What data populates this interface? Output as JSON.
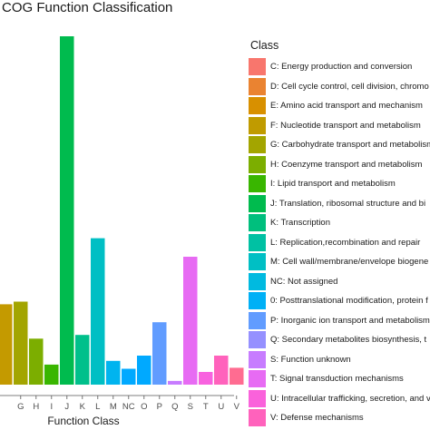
{
  "chart_data": {
    "type": "bar",
    "title": "COG Function Classification",
    "xlabel": "Function Class",
    "ylabel": "",
    "legend_title": "Class",
    "legend_position": "right",
    "grid": false,
    "categories": [
      "F",
      "G",
      "H",
      "I",
      "J",
      "K",
      "L",
      "M",
      "NC",
      "O",
      "P",
      "Q",
      "S",
      "T",
      "U",
      "V"
    ],
    "tick_labels": [
      "G",
      "H",
      "I",
      "J",
      "K",
      "L",
      "M",
      "NC",
      "O",
      "P",
      "Q",
      "S",
      "T",
      "U",
      "V"
    ],
    "values": [
      152,
      157,
      87,
      38,
      659,
      94,
      277,
      45,
      30,
      55,
      118,
      7,
      242,
      24,
      55,
      32
    ],
    "colors": [
      "#C49A00",
      "#A3A500",
      "#7CAE00",
      "#39B600",
      "#00BB4E",
      "#00C08B",
      "#00BFC4",
      "#00B4EF",
      "#00A9FF",
      "#00A9FF",
      "#619CFF",
      "#C77CFF",
      "#E76BF3",
      "#F862DF",
      "#FF62BC",
      "#FF6C91"
    ],
    "legend": [
      {
        "label": "C: Energy production and conversion",
        "color": "#F8766D"
      },
      {
        "label": "D: Cell cycle control, cell division, chromo",
        "color": "#EA8331"
      },
      {
        "label": "E: Amino acid transport and mechanism",
        "color": "#D89000"
      },
      {
        "label": "F: Nucleotide transport and metabolism",
        "color": "#C09B00"
      },
      {
        "label": "G: Carbohydrate transport and metabolism",
        "color": "#A3A500"
      },
      {
        "label": "H: Coenzyme transport and metabolism",
        "color": "#7CAE00"
      },
      {
        "label": "I: Lipid transport and metabolism",
        "color": "#39B600"
      },
      {
        "label": "J: Translation, ribosomal structure and bi",
        "color": "#00BB4E"
      },
      {
        "label": "K: Transcription",
        "color": "#00BF7D"
      },
      {
        "label": "L: Replication,recombination and repair",
        "color": "#00C1A3"
      },
      {
        "label": "M: Cell wall/membrane/envelope biogene",
        "color": "#00BFC4"
      },
      {
        "label": "NC: Not assigned",
        "color": "#00BAE0"
      },
      {
        "label": "0: Posttranslational modification, protein f",
        "color": "#00B0F6"
      },
      {
        "label": "P: Inorganic ion transport and metabolism",
        "color": "#619CFF"
      },
      {
        "label": "Q: Secondary metabolites biosynthesis, t",
        "color": "#9590FF"
      },
      {
        "label": "S: Function unknown",
        "color": "#C77CFF"
      },
      {
        "label": "T: Signal transduction mechanisms",
        "color": "#E76BF3"
      },
      {
        "label": "U: Intracellular trafficking, secretion, and v",
        "color": "#FA62DB"
      },
      {
        "label": "V: Defense mechanisms",
        "color": "#FF62BC"
      }
    ]
  }
}
